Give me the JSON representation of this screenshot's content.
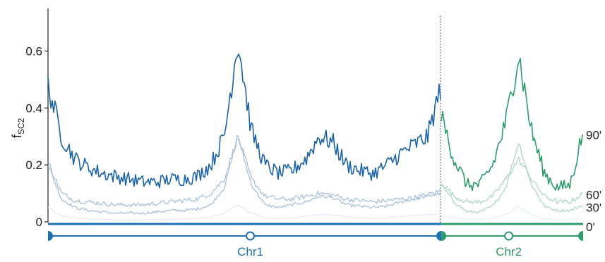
{
  "chart_data": {
    "type": "line",
    "ylabel_main": "f",
    "ylabel_sub": "SC2",
    "ylim": [
      0,
      0.7
    ],
    "yticks": [
      {
        "value": 0,
        "label": "0"
      },
      {
        "value": 0.2,
        "label": "0.2"
      },
      {
        "value": 0.4,
        "label": "0.4"
      },
      {
        "value": 0.6,
        "label": "0.6"
      }
    ],
    "chromosomes": [
      {
        "name": "Chr1",
        "color": "#1f6fb5",
        "pos_start": 0,
        "pos_end": 0.735,
        "centromere": 0.378
      },
      {
        "name": "Chr2",
        "color": "#2e9b6a",
        "pos_start": 0.735,
        "pos_end": 1.0,
        "centromere": 0.861
      }
    ],
    "series": [
      {
        "name": "0'",
        "chr1_color": "#e3ebf5",
        "chr2_color": "#e6f2ec",
        "chr1": [
          0.05,
          0.02,
          0.015,
          0.01,
          0.008,
          0.007,
          0.007,
          0.007,
          0.008,
          0.008,
          0.01,
          0.012,
          0.016,
          0.03,
          0.06,
          0.03,
          0.015,
          0.012,
          0.014,
          0.02,
          0.026,
          0.024,
          0.018,
          0.014,
          0.012,
          0.014,
          0.018,
          0.022,
          0.026,
          0.028
        ],
        "chr2": [
          0.02,
          0.015,
          0.008,
          0.008,
          0.012,
          0.025,
          0.055,
          0.025,
          0.01,
          0.008,
          0.008,
          0.012
        ]
      },
      {
        "name": "30'",
        "chr1_color": "#a8c0dc",
        "chr2_color": "#aed6c3",
        "chr1": [
          0.2,
          0.08,
          0.05,
          0.04,
          0.035,
          0.03,
          0.03,
          0.03,
          0.035,
          0.04,
          0.04,
          0.045,
          0.06,
          0.12,
          0.3,
          0.13,
          0.06,
          0.05,
          0.06,
          0.07,
          0.09,
          0.085,
          0.06,
          0.055,
          0.05,
          0.055,
          0.07,
          0.08,
          0.09,
          0.1
        ],
        "chr2": [
          0.13,
          0.07,
          0.035,
          0.035,
          0.055,
          0.12,
          0.28,
          0.13,
          0.055,
          0.04,
          0.04,
          0.06
        ]
      },
      {
        "name": "60'",
        "chr1_color": "#a8c0dc",
        "chr2_color": "#aed6c3",
        "chr1": [
          0.21,
          0.1,
          0.075,
          0.07,
          0.065,
          0.06,
          0.06,
          0.06,
          0.065,
          0.07,
          0.075,
          0.08,
          0.1,
          0.15,
          0.3,
          0.15,
          0.09,
          0.08,
          0.08,
          0.09,
          0.1,
          0.095,
          0.08,
          0.075,
          0.07,
          0.075,
          0.08,
          0.085,
          0.095,
          0.11
        ],
        "chr2": [
          0.14,
          0.09,
          0.07,
          0.07,
          0.09,
          0.15,
          0.22,
          0.15,
          0.09,
          0.07,
          0.07,
          0.1
        ]
      },
      {
        "name": "90'",
        "chr1_color": "#1a63ac",
        "chr2_color": "#2e9b6a",
        "chr1": [
          0.48,
          0.3,
          0.22,
          0.19,
          0.17,
          0.16,
          0.15,
          0.14,
          0.14,
          0.15,
          0.15,
          0.16,
          0.2,
          0.3,
          0.64,
          0.32,
          0.2,
          0.17,
          0.18,
          0.22,
          0.3,
          0.28,
          0.2,
          0.18,
          0.17,
          0.2,
          0.24,
          0.27,
          0.3,
          0.48
        ],
        "chr2": [
          0.37,
          0.22,
          0.13,
          0.13,
          0.2,
          0.35,
          0.59,
          0.32,
          0.17,
          0.12,
          0.13,
          0.32
        ]
      }
    ]
  }
}
